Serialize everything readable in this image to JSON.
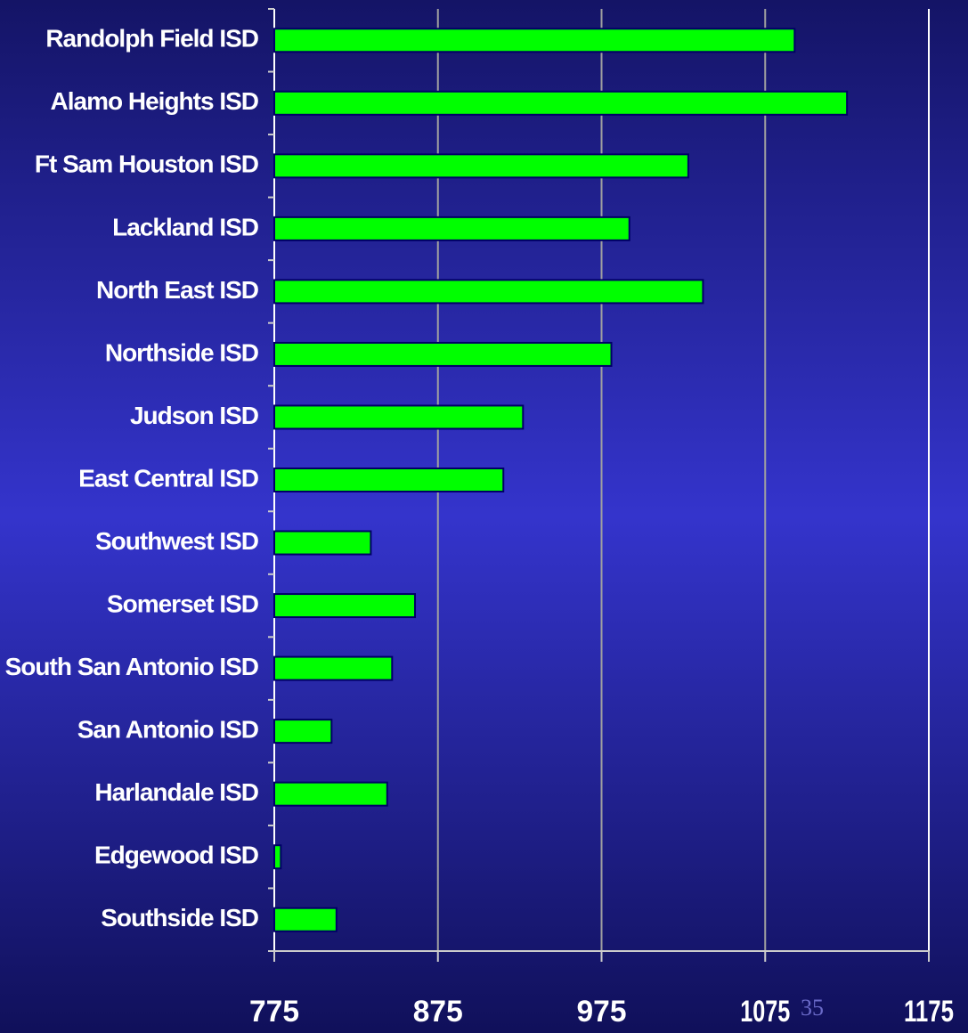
{
  "chart_data": {
    "type": "barh",
    "categories": [
      "Randolph Field ISD",
      "Alamo Heights ISD",
      "Ft Sam Houston ISD",
      "Lackland ISD",
      "North East ISD",
      "Northside ISD",
      "Judson ISD",
      "East Central ISD",
      "Southwest ISD",
      "Somerset ISD",
      "South San Antonio ISD",
      "San Antonio ISD",
      "Harlandale ISD",
      "Edgewood ISD",
      "Southside ISD"
    ],
    "values": [
      1093,
      1125,
      1028,
      992,
      1037,
      981,
      927,
      915,
      834,
      861,
      847,
      810,
      844,
      779,
      813
    ],
    "color": "#00ff00",
    "xlim": [
      775,
      1175
    ],
    "xticks": [
      775,
      875,
      975,
      1075,
      1175
    ],
    "grid": true
  },
  "slide_number": "35"
}
